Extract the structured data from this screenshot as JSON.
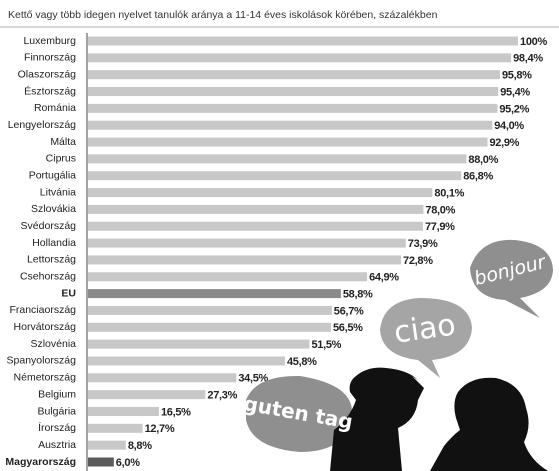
{
  "chart_data": {
    "type": "bar",
    "orientation": "horizontal",
    "title": "Kettő vagy több idegen nyelvet tanulók aránya a 11-14 éves iskolások körében, százalékben",
    "categories": [
      "Luxemburg",
      "Finnország",
      "Olaszország",
      "Észtország",
      "Románia",
      "Lengyelország",
      "Málta",
      "Ciprus",
      "Portugália",
      "Litvánia",
      "Szlovákia",
      "Svédország",
      "Hollandia",
      "Lettország",
      "Csehország",
      "EU",
      "Franciaország",
      "Horvátország",
      "Szlovénia",
      "Spanyolország",
      "Németország",
      "Belgium",
      "Bulgária",
      "Írország",
      "Ausztria",
      "Magyarország"
    ],
    "values": [
      100,
      98.4,
      95.8,
      95.4,
      95.2,
      94.0,
      92.9,
      88.0,
      86.8,
      80.1,
      78.0,
      77.9,
      73.9,
      72.8,
      64.9,
      58.8,
      56.7,
      56.5,
      51.5,
      45.8,
      34.5,
      27.3,
      16.5,
      12.7,
      8.8,
      6.0
    ],
    "value_labels": [
      "100%",
      "98,4%",
      "95,8%",
      "95,4%",
      "95,2%",
      "94,0%",
      "92,9%",
      "88,0%",
      "86,8%",
      "80,1%",
      "78,0%",
      "77,9%",
      "73,9%",
      "72,8%",
      "64,9%",
      "58,8%",
      "56,7%",
      "56,5%",
      "51,5%",
      "45,8%",
      "34,5%",
      "27,3%",
      "16,5%",
      "12,7%",
      "8,8%",
      "6,0%"
    ],
    "color": "#c8c8c8",
    "colors": [
      "#c8c8c8",
      "#c8c8c8",
      "#c8c8c8",
      "#c8c8c8",
      "#c8c8c8",
      "#c8c8c8",
      "#c8c8c8",
      "#c8c8c8",
      "#c8c8c8",
      "#c8c8c8",
      "#c8c8c8",
      "#c8c8c8",
      "#c8c8c8",
      "#c8c8c8",
      "#c8c8c8",
      "#8a8a8a",
      "#c8c8c8",
      "#c8c8c8",
      "#c8c8c8",
      "#c8c8c8",
      "#c8c8c8",
      "#c8c8c8",
      "#c8c8c8",
      "#c8c8c8",
      "#c8c8c8",
      "#5a5a5a"
    ],
    "xlim": [
      0,
      100
    ],
    "annotations": [
      "bonjour",
      "ciao",
      "guten tag"
    ]
  }
}
